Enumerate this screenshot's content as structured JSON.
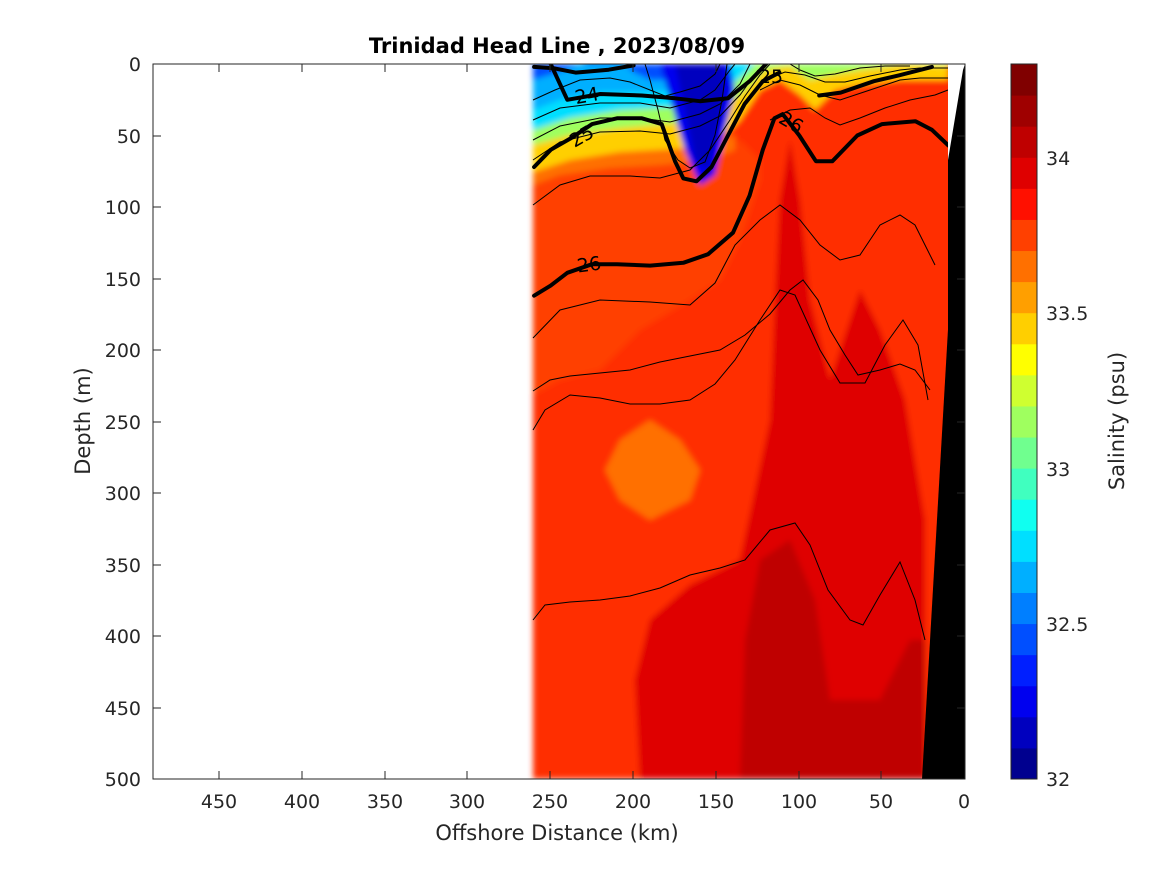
{
  "chart_data": {
    "type": "heatmap",
    "title": "Trinidad Head Line , 2023/08/09",
    "xlabel": "Offshore Distance (km)",
    "ylabel": "Depth (m)",
    "xlim": [
      490,
      0
    ],
    "ylim": [
      0,
      500
    ],
    "x_ticks": [
      "450",
      "400",
      "350",
      "300",
      "250",
      "200",
      "150",
      "100",
      "50",
      "0"
    ],
    "y_ticks": [
      "0",
      "50",
      "100",
      "150",
      "200",
      "250",
      "300",
      "350",
      "400",
      "450",
      "500"
    ],
    "colorbar": {
      "label": "Salinity (psu)",
      "range": [
        32,
        34.3
      ],
      "ticks": [
        "32",
        "32.5",
        "33",
        "33.5",
        "34"
      ],
      "levels": 23
    },
    "colormap": [
      "#00008f",
      "#0000bf",
      "#0000ef",
      "#001fff",
      "#004fff",
      "#007fff",
      "#00afff",
      "#00dfff",
      "#10fff0",
      "#40ffbf",
      "#70ff8f",
      "#9fff5f",
      "#cfff30",
      "#ffff00",
      "#ffcf00",
      "#ff9f00",
      "#ff7000",
      "#ff4000",
      "#ff1000",
      "#df0000",
      "#bf0000",
      "#9f0000",
      "#800000"
    ],
    "contour_labels": [
      "24",
      "25",
      "25",
      "26",
      "26"
    ],
    "density_contours": [
      {
        "level": 24,
        "points": [
          [
            260,
            2
          ],
          [
            248,
            3
          ],
          [
            235,
            6
          ],
          [
            215,
            4
          ],
          [
            200,
            1
          ]
        ]
      },
      {
        "level": 24,
        "points": [
          [
            250,
            0
          ],
          [
            240,
            25
          ],
          [
            220,
            21
          ],
          [
            195,
            22
          ],
          [
            175,
            24
          ],
          [
            160,
            26
          ],
          [
            143,
            24
          ],
          [
            130,
            12
          ],
          [
            120,
            0
          ]
        ]
      },
      {
        "level": 25,
        "points": [
          [
            260,
            72
          ],
          [
            250,
            60
          ],
          [
            238,
            52
          ],
          [
            225,
            42
          ],
          [
            210,
            38
          ],
          [
            195,
            38
          ],
          [
            183,
            42
          ],
          [
            175,
            68
          ],
          [
            170,
            80
          ],
          [
            162,
            82
          ],
          [
            153,
            72
          ],
          [
            143,
            50
          ],
          [
            133,
            28
          ],
          [
            122,
            12
          ],
          [
            112,
            6
          ]
        ]
      },
      {
        "level": 25,
        "points": [
          [
            88,
            22
          ],
          [
            75,
            20
          ],
          [
            55,
            12
          ],
          [
            40,
            8
          ],
          [
            20,
            2
          ]
        ]
      },
      {
        "level": 26,
        "points": [
          [
            260,
            162
          ],
          [
            250,
            155
          ],
          [
            240,
            146
          ],
          [
            225,
            140
          ],
          [
            210,
            140
          ],
          [
            190,
            141
          ],
          [
            170,
            139
          ],
          [
            155,
            133
          ],
          [
            140,
            118
          ],
          [
            130,
            92
          ],
          [
            122,
            60
          ],
          [
            115,
            38
          ],
          [
            110,
            35
          ],
          [
            100,
            50
          ],
          [
            90,
            68
          ],
          [
            80,
            68
          ],
          [
            65,
            50
          ],
          [
            50,
            42
          ],
          [
            30,
            40
          ],
          [
            20,
            46
          ],
          [
            10,
            57
          ]
        ]
      }
    ]
  }
}
